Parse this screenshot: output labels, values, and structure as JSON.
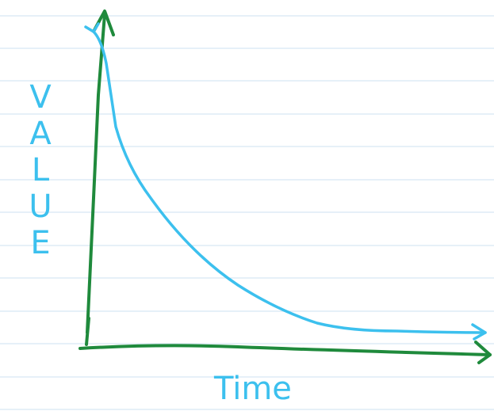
{
  "y_label": "VALUE",
  "x_label": "Time"
}
